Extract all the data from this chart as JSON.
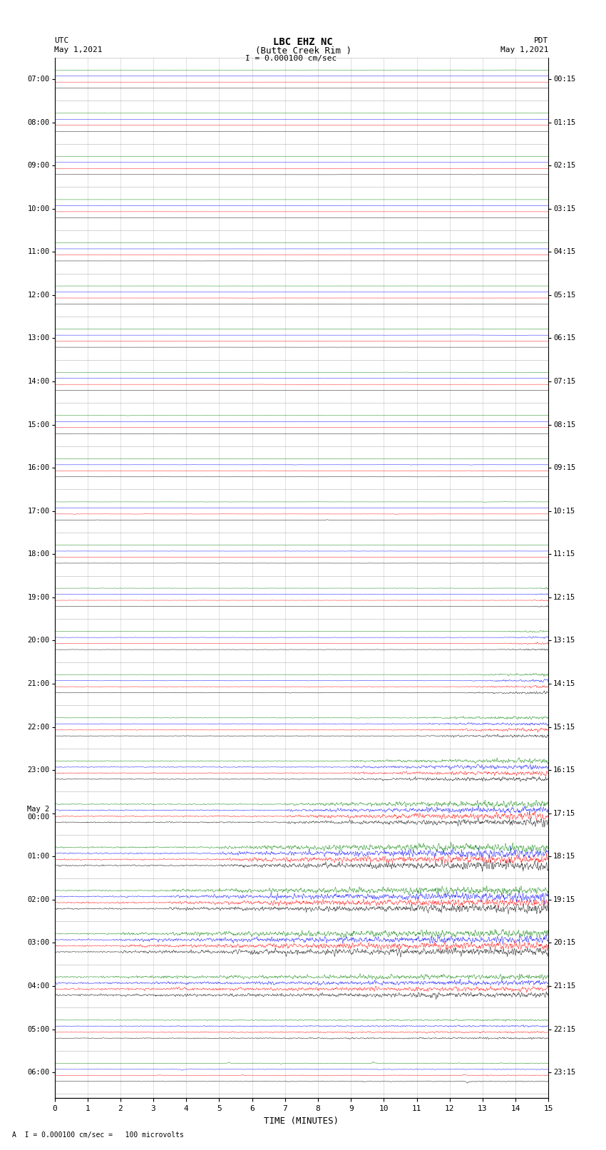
{
  "title_line1": "LBC EHZ NC",
  "title_line2": "(Butte Creek Rim )",
  "scale_label": "I = 0.000100 cm/sec",
  "utc_label": "UTC\nMay 1,2021",
  "pdt_label": "PDT\nMay 1,2021",
  "xlabel": "TIME (MINUTES)",
  "bottom_label": "A  I = 0.000100 cm/sec =   100 microvolts",
  "xlim": [
    0,
    15
  ],
  "xticks": [
    0,
    1,
    2,
    3,
    4,
    5,
    6,
    7,
    8,
    9,
    10,
    11,
    12,
    13,
    14,
    15
  ],
  "background_color": "#ffffff",
  "left_times_utc": [
    "07:00",
    "",
    "08:00",
    "",
    "09:00",
    "",
    "10:00",
    "",
    "11:00",
    "",
    "12:00",
    "",
    "13:00",
    "",
    "14:00",
    "",
    "15:00",
    "",
    "16:00",
    "",
    "17:00",
    "",
    "18:00",
    "",
    "19:00",
    "",
    "20:00",
    "",
    "21:00",
    "",
    "22:00",
    "",
    "23:00",
    "",
    "May 2\n00:00",
    "",
    "01:00",
    "",
    "02:00",
    "",
    "03:00",
    "",
    "04:00",
    "",
    "05:00",
    "",
    "06:00",
    ""
  ],
  "right_times_pdt": [
    "00:15",
    "",
    "01:15",
    "",
    "02:15",
    "",
    "03:15",
    "",
    "04:15",
    "",
    "05:15",
    "",
    "06:15",
    "",
    "07:15",
    "",
    "08:15",
    "",
    "09:15",
    "",
    "10:15",
    "",
    "11:15",
    "",
    "12:15",
    "",
    "13:15",
    "",
    "14:15",
    "",
    "15:15",
    "",
    "16:15",
    "",
    "17:15",
    "",
    "18:15",
    "",
    "19:15",
    "",
    "20:15",
    "",
    "21:15",
    "",
    "22:15",
    "",
    "23:15",
    ""
  ],
  "num_rows": 24,
  "sub_traces": 4,
  "trace_colors": [
    "black",
    "red",
    "blue",
    "green"
  ],
  "fig_width": 8.5,
  "fig_height": 16.13,
  "amplitude_profile": [
    0.03,
    0.03,
    0.03,
    0.03,
    0.03,
    0.03,
    0.04,
    0.05,
    0.07,
    0.09,
    0.12,
    0.15,
    0.18,
    0.22,
    0.28,
    0.38,
    0.55,
    0.75,
    0.95,
    0.9,
    0.85,
    0.55,
    0.18,
    0.08
  ],
  "event_start_x": [
    15,
    15,
    15,
    15,
    15,
    15,
    15,
    15,
    15,
    15,
    15,
    15,
    14.5,
    13.5,
    12.5,
    11.0,
    9.0,
    7.0,
    5.0,
    3.5,
    2.0,
    0.0,
    0.0,
    0.0
  ]
}
